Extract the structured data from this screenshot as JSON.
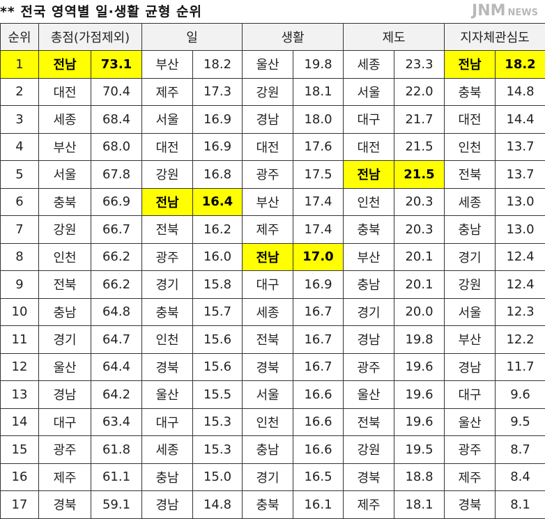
{
  "title": "** 전국 영역별 일·생활 균형 순위",
  "headers": [
    "순위",
    "총점(가점제외)",
    "일",
    "생활",
    "제도",
    "지자체관심도"
  ],
  "highlight_color": "#ffff00",
  "rows": [
    [
      "1",
      "전남",
      "73.1",
      "부산",
      "18.2",
      "울산",
      "19.8",
      "세종",
      "23.3",
      "전남",
      "18.2"
    ],
    [
      "2",
      "대전",
      "70.4",
      "제주",
      "17.3",
      "강원",
      "18.1",
      "서울",
      "22.0",
      "충북",
      "14.8"
    ],
    [
      "3",
      "세종",
      "68.4",
      "서울",
      "16.9",
      "경남",
      "18.0",
      "대구",
      "21.7",
      "대전",
      "14.4"
    ],
    [
      "4",
      "부산",
      "68.0",
      "대전",
      "16.9",
      "대전",
      "17.6",
      "대전",
      "21.5",
      "인천",
      "13.7"
    ],
    [
      "5",
      "서울",
      "67.8",
      "강원",
      "16.8",
      "광주",
      "17.5",
      "전남",
      "21.5",
      "전북",
      "13.7"
    ],
    [
      "6",
      "충북",
      "66.9",
      "전남",
      "16.4",
      "부산",
      "17.4",
      "인천",
      "20.3",
      "세종",
      "13.0"
    ],
    [
      "7",
      "강원",
      "66.7",
      "전북",
      "16.2",
      "제주",
      "17.4",
      "충북",
      "20.3",
      "충남",
      "13.0"
    ],
    [
      "8",
      "인천",
      "66.2",
      "광주",
      "16.0",
      "전남",
      "17.0",
      "부산",
      "20.1",
      "경기",
      "12.4"
    ],
    [
      "9",
      "전북",
      "66.2",
      "경기",
      "15.8",
      "대구",
      "16.9",
      "충남",
      "20.1",
      "강원",
      "12.4"
    ],
    [
      "10",
      "충남",
      "64.8",
      "충북",
      "15.7",
      "세종",
      "16.7",
      "경기",
      "20.0",
      "서울",
      "12.3"
    ],
    [
      "11",
      "경기",
      "64.7",
      "인천",
      "15.6",
      "전북",
      "16.7",
      "경남",
      "19.8",
      "부산",
      "12.2"
    ],
    [
      "12",
      "울산",
      "64.4",
      "경북",
      "15.6",
      "경북",
      "16.7",
      "광주",
      "19.6",
      "경남",
      "11.7"
    ],
    [
      "13",
      "경남",
      "64.2",
      "울산",
      "15.5",
      "서울",
      "16.6",
      "울산",
      "19.6",
      "대구",
      "9.6"
    ],
    [
      "14",
      "대구",
      "63.4",
      "대구",
      "15.3",
      "인천",
      "16.6",
      "전북",
      "19.6",
      "울산",
      "9.5"
    ],
    [
      "15",
      "광주",
      "61.8",
      "세종",
      "15.3",
      "충남",
      "16.6",
      "강원",
      "19.5",
      "광주",
      "8.7"
    ],
    [
      "16",
      "제주",
      "61.1",
      "충남",
      "15.0",
      "경기",
      "16.5",
      "경북",
      "18.8",
      "제주",
      "8.4"
    ],
    [
      "17",
      "경북",
      "59.1",
      "경남",
      "14.8",
      "충북",
      "16.1",
      "제주",
      "18.1",
      "경북",
      "8.1"
    ]
  ],
  "watermark": {
    "main": "JNM",
    "sub": "NEWS"
  }
}
